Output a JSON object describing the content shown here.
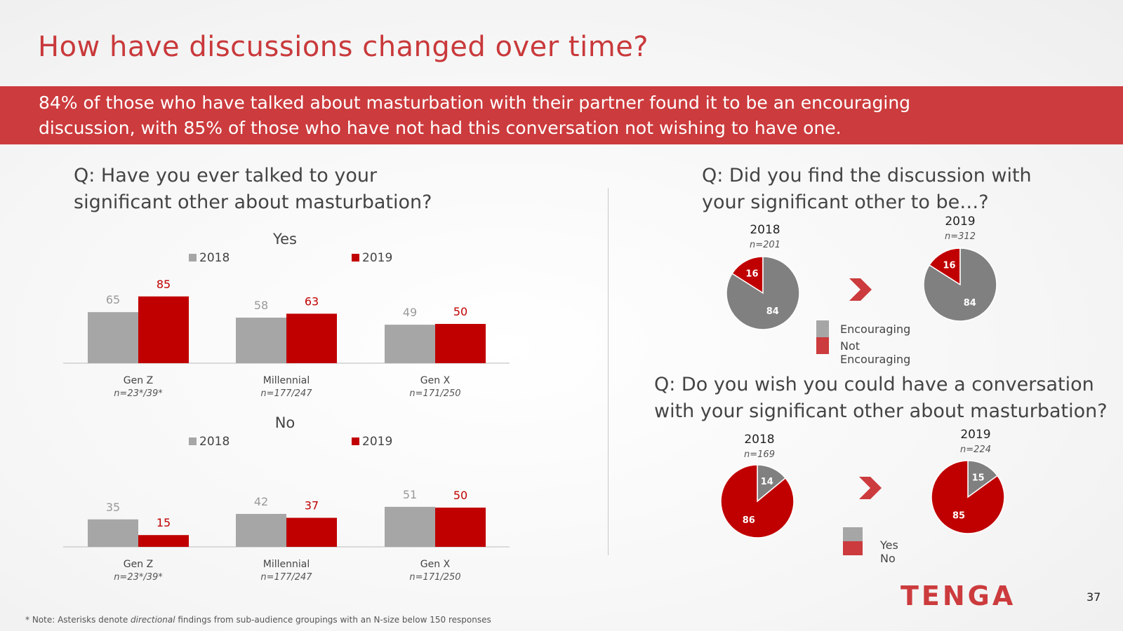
{
  "title": "How have discussions changed over time?",
  "banner": {
    "line1": "84% of those who have talked about masturbation with their partner found it to be an encouraging",
    "line2": "discussion, with 85% of those who have not had this conversation not wishing to have one."
  },
  "q_left": {
    "line1": "Q: Have you ever talked to your",
    "line2": "significant other about masturbation?"
  },
  "q_right_top": {
    "line1": "Q: Did you find the discussion with",
    "line2": "your significant other to be…?"
  },
  "q_right_bottom": {
    "line1": "Q: Do you wish you could have a conversation",
    "line2": "with your significant other about masturbation?"
  },
  "pie_legend_1": {
    "a": "Encouraging",
    "b": "Not Encouraging"
  },
  "pie_legend_2": {
    "a": "Yes",
    "b": "No"
  },
  "colors": {
    "grey": "#a6a6a6",
    "red": "#c00000",
    "pie_grey": "#808080",
    "pie_red": "#c00000",
    "brand": "#cc3b3d"
  },
  "chart_data": [
    {
      "type": "bar",
      "title": "Yes",
      "categories": [
        "Gen Z",
        "Millennial",
        "Gen X"
      ],
      "category_notes": [
        "n=23*/39*",
        "n=177/247",
        "n=171/250"
      ],
      "series": [
        {
          "name": "2018",
          "values": [
            65,
            58,
            49
          ]
        },
        {
          "name": "2019",
          "values": [
            85,
            63,
            50
          ]
        }
      ],
      "ylim": [
        0,
        100
      ]
    },
    {
      "type": "bar",
      "title": "No",
      "categories": [
        "Gen Z",
        "Millennial",
        "Gen X"
      ],
      "category_notes": [
        "n=23*/39*",
        "n=177/247",
        "n=171/250"
      ],
      "series": [
        {
          "name": "2018",
          "values": [
            35,
            42,
            51
          ]
        },
        {
          "name": "2019",
          "values": [
            15,
            37,
            50
          ]
        }
      ],
      "ylim": [
        0,
        100
      ]
    },
    {
      "type": "pie",
      "title": "2018",
      "note": "n=201",
      "labels": [
        "Encouraging",
        "Not Encouraging"
      ],
      "values": [
        84,
        16
      ]
    },
    {
      "type": "pie",
      "title": "2019",
      "note": "n=312",
      "labels": [
        "Encouraging",
        "Not Encouraging"
      ],
      "values": [
        84,
        16
      ]
    },
    {
      "type": "pie",
      "title": "2018",
      "note": "n=169",
      "labels": [
        "Yes",
        "No"
      ],
      "values": [
        14,
        86
      ]
    },
    {
      "type": "pie",
      "title": "2019",
      "note": "n=224",
      "labels": [
        "Yes",
        "No"
      ],
      "values": [
        15,
        85
      ]
    }
  ],
  "footnote": {
    "pre": "* Note: Asterisks denote ",
    "em": "directional",
    "post": " findings from sub-audience groupings with an N-size below 150 responses"
  },
  "logo_text": "TENGA",
  "page_number": "37"
}
